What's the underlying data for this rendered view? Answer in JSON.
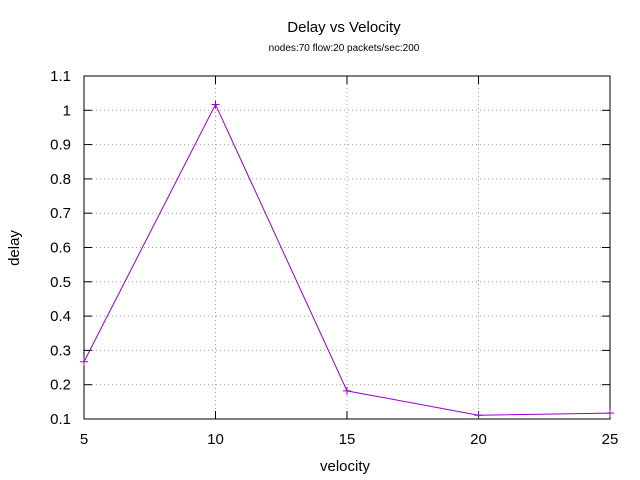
{
  "chart_data": {
    "type": "line",
    "title": "Delay vs Velocity",
    "subtitle": "nodes:70  flow:20  packets/sec:200",
    "xlabel": "velocity",
    "ylabel": "delay",
    "xlim": [
      5,
      25
    ],
    "ylim": [
      0.1,
      1.1
    ],
    "xticks": [
      5,
      10,
      15,
      20,
      25
    ],
    "yticks": [
      0.1,
      0.2,
      0.3,
      0.4,
      0.5,
      0.6,
      0.7,
      0.8,
      0.9,
      1,
      1.1
    ],
    "xtick_labels": [
      "5",
      "10",
      "15",
      "20",
      "25"
    ],
    "ytick_labels": [
      "0.1",
      "0.2",
      "0.3",
      "0.4",
      "0.5",
      "0.6",
      "0.7",
      "0.8",
      "0.9",
      "1",
      "1.1"
    ],
    "grid": true,
    "series": [
      {
        "color": "#9400d3",
        "marker": "plus",
        "x": [
          5,
          10,
          15,
          20,
          25
        ],
        "y": [
          0.267,
          1.017,
          0.182,
          0.111,
          0.117
        ]
      }
    ]
  }
}
